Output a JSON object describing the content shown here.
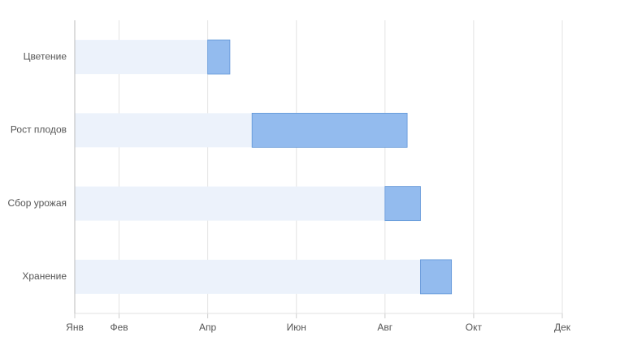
{
  "chart_data": {
    "type": "stacked-hbar",
    "categories": [
      "Цветение",
      "Рост плодов",
      "Сбор урожая",
      "Хранение"
    ],
    "series": [
      {
        "color": "#ecf2fb",
        "values": [
          3,
          4,
          7,
          7.8
        ]
      },
      {
        "color": "#93bbee",
        "values": [
          0.5,
          3.5,
          0.8,
          0.7
        ]
      }
    ],
    "xlim": [
      0,
      11
    ],
    "xticks": [
      {
        "value": 0,
        "label": "Янв"
      },
      {
        "value": 1,
        "label": "Фев"
      },
      {
        "value": 3,
        "label": "Апр"
      },
      {
        "value": 5,
        "label": "Июн"
      },
      {
        "value": 7,
        "label": "Авг"
      },
      {
        "value": 9,
        "label": "Окт"
      },
      {
        "value": 11,
        "label": "Дек"
      }
    ],
    "grid": true
  }
}
